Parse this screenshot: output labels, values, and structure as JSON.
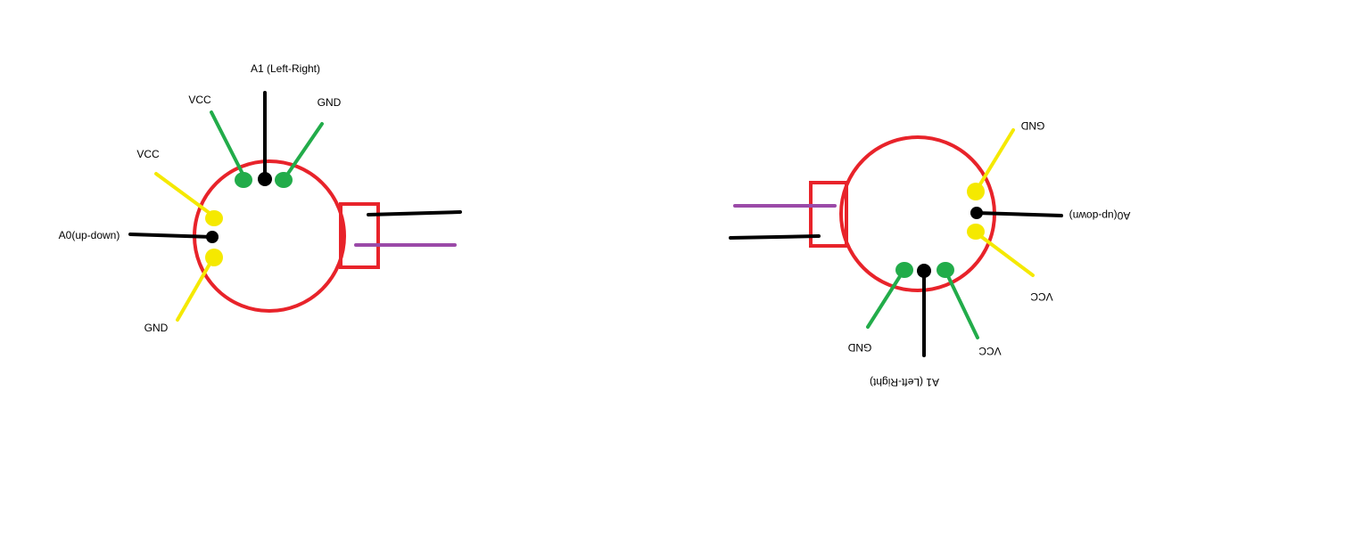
{
  "colors": {
    "outline": "#e8232a",
    "vcc_gnd_green": "#22ac4a",
    "vcc_gnd_yellow": "#f5e900",
    "signal_black": "#000000",
    "wire_purple": "#9b4aa8"
  },
  "left": {
    "label_a1": "A1 (Left-Right)",
    "label_vcc_top": "VCC",
    "label_gnd_top": "GND",
    "label_vcc_side": "VCC",
    "label_a0": "A0(up-down)",
    "label_gnd_side": "GND"
  },
  "right": {
    "label_gnd_side": "GND",
    "label_a0": "A0(up-down)",
    "label_vcc_side": "VCC",
    "label_gnd_bottom": "GND",
    "label_vcc_bottom": "VCC",
    "label_a1": "A1 (Left-Right)"
  }
}
